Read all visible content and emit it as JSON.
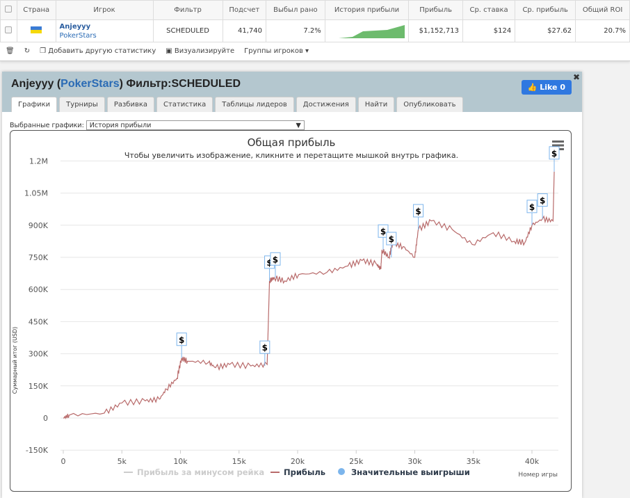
{
  "table": {
    "headers": [
      "Страна",
      "Игрок",
      "Фильтр",
      "Подсчет",
      "Выбыл рано",
      "История прибыли",
      "Прибыль",
      "Ср. ставка",
      "Ср. прибыль",
      "Общий ROI"
    ],
    "row": {
      "player": "Anjeyyy",
      "site": "PokerStars",
      "filter": "SCHEDULED",
      "count": "41,740",
      "early": "7.2%",
      "profit": "$1,152,713",
      "avg_stake": "$124",
      "avg_profit": "$27.62",
      "roi": "20.7%"
    }
  },
  "toolbar": {
    "add": "Добавить другую статистику",
    "visualize": "Визуализируйте",
    "groups": "Группы игроков ▾"
  },
  "panel": {
    "player": "Anjeyyy",
    "site": "PokerStars",
    "filter_label": "Фильтр:",
    "filter": "SCHEDULED",
    "like": "Like 0",
    "tabs": [
      "Графики",
      "Турниры",
      "Разбивка",
      "Статистика",
      "Таблицы лидеров",
      "Достижения",
      "Найти",
      "Опубликовать"
    ],
    "select_label": "Выбранные графики:",
    "select_value": "История прибыли"
  },
  "chart_data": {
    "type": "line",
    "title": "Общая прибыль",
    "subtitle": "Чтобы увеличить изображение, кликните и перетащите мышкой внутрь графика.",
    "xlabel": "Номер игры",
    "ylabel": "Суммарный итог (USD)",
    "xlim": [
      0,
      42500
    ],
    "ylim": [
      -150000,
      1200000
    ],
    "xticks": [
      "0",
      "5k",
      "10k",
      "15k",
      "20k",
      "25k",
      "30k",
      "35k",
      "40k"
    ],
    "yticks": [
      "1.2M",
      "1.05M",
      "900K",
      "750K",
      "600K",
      "450K",
      "300K",
      "150K",
      "0",
      "-150K"
    ],
    "legend": [
      "Прибыль за минусом рейка",
      "Прибыль",
      "Значительные выигрыши"
    ],
    "colors": {
      "profit": "#b86a6a",
      "rake": "#cccccc",
      "wins": "#7cb5ec"
    },
    "series": [
      {
        "name": "Прибыль",
        "x": [
          0,
          500,
          3500,
          5000,
          7000,
          8200,
          8800,
          9700,
          10100,
          10600,
          12400,
          13000,
          14200,
          16000,
          17400,
          17600,
          18000,
          18900,
          20100,
          22500,
          24300,
          25500,
          26700,
          27100,
          27200,
          27800,
          28100,
          29000,
          30000,
          30300,
          31400,
          33200,
          34900,
          36700,
          38500,
          39400,
          40000,
          40900,
          41800,
          41900
        ],
        "y": [
          0,
          13000,
          23000,
          70000,
          80000,
          88000,
          135000,
          185000,
          280000,
          265000,
          260000,
          235000,
          250000,
          243000,
          250000,
          640000,
          655000,
          640000,
          670000,
          680000,
          710000,
          735000,
          720000,
          695000,
          785000,
          750000,
          815000,
          800000,
          750000,
          880000,
          920000,
          880000,
          810000,
          865000,
          825000,
          820000,
          900000,
          930000,
          920000,
          1150000
        ]
      }
    ],
    "big_wins_x": [
      10100,
      17200,
      17600,
      18100,
      27300,
      28000,
      30300,
      40000,
      40900,
      41900
    ]
  }
}
